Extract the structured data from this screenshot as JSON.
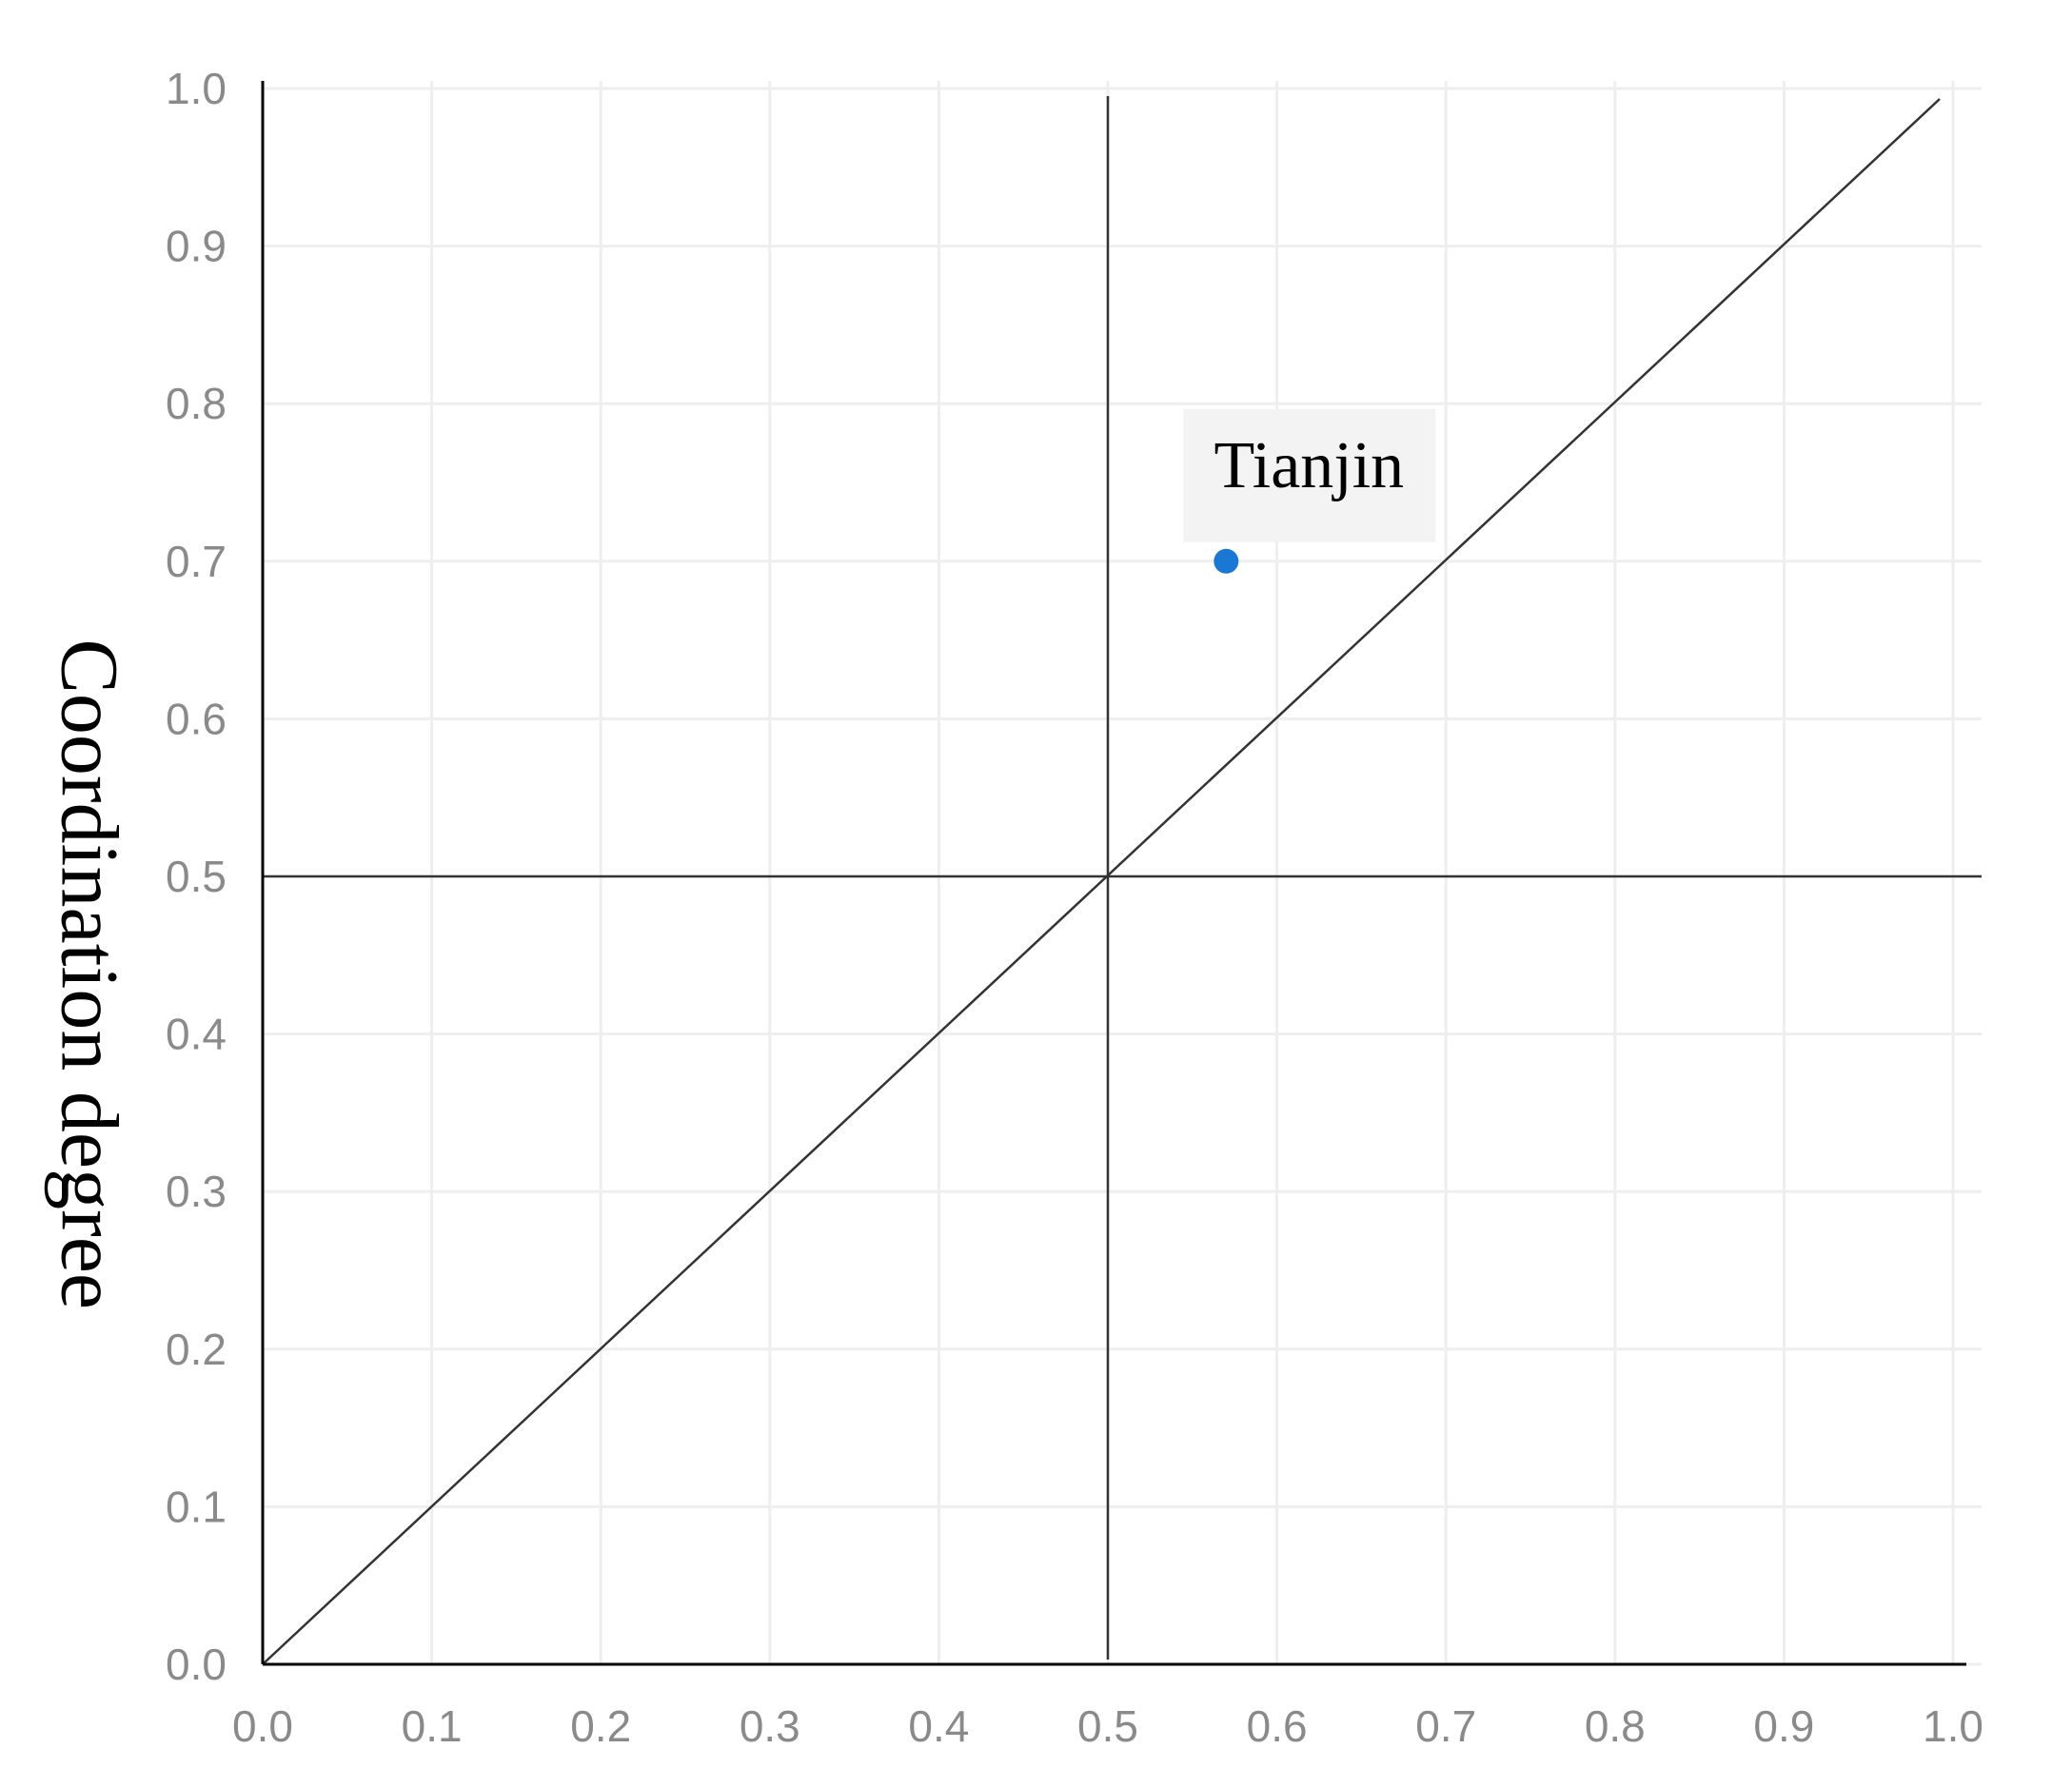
{
  "chart_data": {
    "type": "scatter",
    "ylabel": "Coordination degree",
    "xlabel": "",
    "xlim": [
      0,
      1
    ],
    "ylim": [
      0,
      1
    ],
    "x_ticks": [
      "0.0",
      "0.1",
      "0.2",
      "0.3",
      "0.4",
      "0.5",
      "0.6",
      "0.7",
      "0.8",
      "0.9",
      "1.0"
    ],
    "y_ticks": [
      "0.0",
      "0.1",
      "0.2",
      "0.3",
      "0.4",
      "0.5",
      "0.6",
      "0.7",
      "0.8",
      "0.9",
      "1.0"
    ],
    "grid": true,
    "reference_lines": {
      "vertical_x": 0.5,
      "horizontal_y": 0.5,
      "diagonal": [
        [
          0,
          0
        ],
        [
          1,
          1
        ]
      ]
    },
    "points": [
      {
        "label": "Tianjin",
        "x": 0.57,
        "y": 0.7
      }
    ],
    "colors": {
      "point": "#1a78d4",
      "grid": "#eeeeee",
      "reference": "#333333",
      "tick_text": "#8a8a8a",
      "label_box": "#f3f3f3"
    }
  }
}
